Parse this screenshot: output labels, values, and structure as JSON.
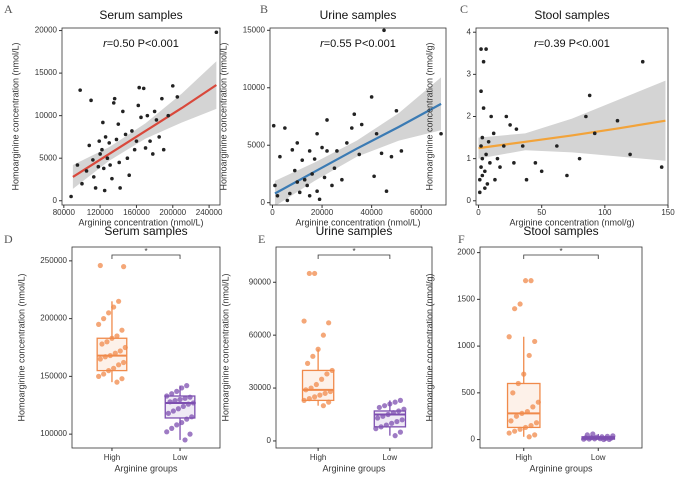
{
  "chart_data": [
    {
      "type": "scatter",
      "letter": "A",
      "title": "Serum samples",
      "x_label": "Arginine concentration (nmol/L)",
      "y_label": "Homoarginine concentration (nmol/L)",
      "annotation": {
        "r": "r",
        "text": "=0.50  P<0.001"
      },
      "xlim": [
        78000,
        252000
      ],
      "xticks": [
        80000,
        120000,
        160000,
        200000,
        240000
      ],
      "ylim": [
        -500,
        20300
      ],
      "yticks": [
        0,
        5000,
        10000,
        15000,
        20000
      ],
      "point_color": "#222222",
      "fit_color": "#d9483b",
      "band_color": "#d4d4d4",
      "x": [
        88000,
        95000,
        98000,
        100000,
        105000,
        108000,
        110000,
        112000,
        113000,
        115000,
        118000,
        119000,
        120000,
        122000,
        123000,
        124000,
        125000,
        126000,
        128000,
        130000,
        131000,
        133000,
        135000,
        136000,
        138000,
        140000,
        141000,
        142000,
        145000,
        148000,
        150000,
        152000,
        155000,
        158000,
        160000,
        162000,
        163000,
        165000,
        168000,
        170000,
        172000,
        175000,
        178000,
        180000,
        182000,
        185000,
        188000,
        190000,
        195000,
        200000,
        205000,
        248000
      ],
      "values": [
        500,
        4200,
        13000,
        2000,
        3500,
        6500,
        11800,
        4800,
        2800,
        1500,
        4000,
        7000,
        5500,
        6000,
        9200,
        3800,
        1200,
        7500,
        5000,
        6800,
        4200,
        2600,
        11500,
        12000,
        7200,
        9000,
        4500,
        1500,
        10500,
        7800,
        5000,
        3000,
        8200,
        6000,
        7000,
        11200,
        13300,
        9800,
        13200,
        6200,
        10000,
        7000,
        5500,
        10500,
        9500,
        7500,
        12000,
        6000,
        10000,
        13500,
        12200,
        19800
      ],
      "fit": {
        "x": [
          90000,
          130000,
          170000,
          210000,
          248000
        ],
        "y": [
          2800,
          5500,
          8200,
          10900,
          13600
        ],
        "lower": [
          1400,
          4700,
          7300,
          9200,
          10800
        ],
        "upper": [
          4200,
          6300,
          9100,
          12600,
          16400
        ]
      }
    },
    {
      "type": "scatter",
      "letter": "B",
      "title": "Urine samples",
      "x_label": "Arginine concentration (nmol/L)",
      "y_label": "Homoarginine concentration (nmol/L)",
      "annotation": {
        "r": "r",
        "text": "=0.55  P<0.001"
      },
      "xlim": [
        -1000,
        70000
      ],
      "xticks": [
        0,
        20000,
        40000,
        60000
      ],
      "ylim": [
        -200,
        15200
      ],
      "yticks": [
        0,
        5000,
        10000,
        15000
      ],
      "point_color": "#222222",
      "fit_color": "#3b7bb4",
      "band_color": "#d4d4d4",
      "x": [
        500,
        1000,
        2000,
        3000,
        5000,
        6000,
        7000,
        8000,
        9000,
        10000,
        10000,
        11000,
        12000,
        13000,
        14000,
        15000,
        15000,
        16000,
        17000,
        18000,
        18000,
        19000,
        20000,
        21000,
        22000,
        22000,
        24000,
        25000,
        26000,
        28000,
        30000,
        32000,
        33000,
        35000,
        36000,
        40000,
        41000,
        42000,
        44000,
        45000,
        46000,
        48000,
        50000,
        52000,
        68000
      ],
      "values": [
        6700,
        1500,
        600,
        4000,
        6500,
        200,
        800,
        4600,
        2800,
        1800,
        5200,
        900,
        3700,
        2000,
        1500,
        4500,
        600,
        2500,
        3800,
        6000,
        1000,
        300,
        4800,
        2200,
        4500,
        7200,
        1500,
        3000,
        4500,
        2000,
        5200,
        6500,
        7700,
        4200,
        6800,
        9200,
        2300,
        6000,
        4300,
        15000,
        1000,
        4000,
        8000,
        4500,
        6000
      ],
      "fit": {
        "x": [
          1000,
          17000,
          34000,
          51000,
          68000
        ],
        "y": [
          800,
          2700,
          4700,
          6600,
          8600
        ],
        "lower": [
          -300,
          1900,
          4000,
          5400,
          6300
        ],
        "upper": [
          1900,
          3500,
          5400,
          7800,
          10900
        ]
      }
    },
    {
      "type": "scatter",
      "letter": "C",
      "title": "Stool samples",
      "x_label": "Arginine concentration (nmol/g)",
      "y_label": "Homoarginine concentration (nmol/g)",
      "annotation": {
        "r": "r",
        "text": "=0.39  P<0.001"
      },
      "xlim": [
        -2,
        150
      ],
      "xticks": [
        0,
        50,
        100,
        150
      ],
      "ylim": [
        -0.1,
        4.1
      ],
      "yticks": [
        0,
        1,
        2,
        3,
        4
      ],
      "point_color": "#222222",
      "fit_color": "#f2a33a",
      "band_color": "#d4d4d4",
      "x": [
        1,
        1,
        2,
        2,
        2,
        2,
        3,
        3,
        3,
        4,
        4,
        5,
        5,
        6,
        6,
        7,
        8,
        9,
        10,
        12,
        13,
        15,
        17,
        20,
        22,
        25,
        28,
        30,
        35,
        38,
        45,
        50,
        62,
        70,
        80,
        85,
        88,
        92,
        120,
        130,
        145,
        110
      ],
      "values": [
        0.2,
        0.5,
        0.8,
        1.3,
        2.6,
        3.6,
        0.6,
        1.0,
        1.5,
        2.2,
        3.3,
        0.3,
        0.7,
        1.1,
        3.6,
        0.4,
        1.4,
        0.9,
        2.0,
        1.6,
        0.5,
        1.0,
        0.8,
        1.3,
        2.0,
        1.8,
        0.9,
        1.7,
        1.3,
        0.5,
        0.9,
        0.7,
        1.3,
        0.6,
        1.0,
        2.0,
        2.5,
        1.6,
        1.1,
        3.3,
        0.8,
        1.9
      ],
      "fit": {
        "x": [
          0,
          37,
          74,
          111,
          148
        ],
        "y": [
          1.25,
          1.4,
          1.55,
          1.72,
          1.9
        ],
        "lower": [
          1.0,
          1.2,
          1.15,
          1.05,
          0.95
        ],
        "upper": [
          1.5,
          1.6,
          1.95,
          2.4,
          2.85
        ]
      }
    },
    {
      "type": "box",
      "letter": "D",
      "title": "Serum samples",
      "x_label": "Arginine groups",
      "y_label": "Homoarginine concentration (nmol/L)",
      "significance": "*",
      "categories": [
        "High",
        "Low"
      ],
      "colors": [
        "#f08a4b",
        "#7d4fb0"
      ],
      "ylim": [
        88000,
        262000
      ],
      "yticks": [
        100000,
        150000,
        200000,
        250000
      ],
      "boxes": [
        {
          "min": 145000,
          "q1": 155000,
          "median": 168000,
          "q3": 183000,
          "max": 215000
        },
        {
          "min": 95000,
          "q1": 114000,
          "median": 127000,
          "q3": 133000,
          "max": 142000
        }
      ],
      "points": [
        [
          145000,
          148000,
          150000,
          152000,
          155000,
          157000,
          160000,
          162000,
          165000,
          167000,
          168000,
          170000,
          172000,
          175000,
          178000,
          180000,
          183000,
          185000,
          190000,
          195000,
          200000,
          205000,
          210000,
          215000,
          245000,
          246000
        ],
        [
          95000,
          100000,
          102000,
          105000,
          108000,
          110000,
          113000,
          115000,
          118000,
          120000,
          122000,
          124000,
          126000,
          127000,
          128000,
          129000,
          130000,
          131000,
          132000,
          133000,
          135000,
          137000,
          140000,
          142000
        ]
      ]
    },
    {
      "type": "box",
      "letter": "E",
      "title": "Urine samples",
      "x_label": "Arginine groups",
      "y_label": "Homoarginine concentration (nmol/L)",
      "significance": "*",
      "categories": [
        "High",
        "Low"
      ],
      "colors": [
        "#f08a4b",
        "#7d4fb0"
      ],
      "ylim": [
        -4000,
        110000
      ],
      "yticks": [
        0,
        30000,
        60000,
        90000
      ],
      "boxes": [
        {
          "min": 20000,
          "q1": 23000,
          "median": 29000,
          "q3": 40000,
          "max": 52000
        },
        {
          "min": 3000,
          "q1": 8000,
          "median": 15000,
          "q3": 17000,
          "max": 23000
        }
      ],
      "points": [
        [
          20000,
          22000,
          23000,
          24000,
          25000,
          26000,
          27000,
          28000,
          29000,
          30000,
          32000,
          35000,
          38000,
          40000,
          44000,
          48000,
          52000,
          60000,
          67000,
          68000,
          95000,
          95000
        ],
        [
          3000,
          5000,
          7000,
          8000,
          9000,
          10000,
          11000,
          12000,
          13000,
          14000,
          15000,
          16000,
          17000,
          18000,
          19000,
          20000,
          21000,
          22000,
          23000
        ]
      ]
    },
    {
      "type": "box",
      "letter": "F",
      "title": "Stool samples",
      "x_label": "Arginine groups",
      "y_label": "Homoarginine concentration (nmol/g)",
      "significance": "*",
      "categories": [
        "High",
        "Low"
      ],
      "colors": [
        "#f08a4b",
        "#7d4fb0"
      ],
      "ylim": [
        -90,
        2060
      ],
      "yticks": [
        0,
        500,
        1000,
        1500,
        2000
      ],
      "boxes": [
        {
          "min": 30,
          "q1": 130,
          "median": 280,
          "q3": 600,
          "max": 1100
        },
        {
          "min": 0,
          "q1": 5,
          "median": 15,
          "q3": 30,
          "max": 60
        }
      ],
      "points": [
        [
          30,
          50,
          70,
          90,
          110,
          130,
          150,
          180,
          200,
          250,
          280,
          300,
          350,
          400,
          500,
          600,
          700,
          900,
          1050,
          1100,
          1400,
          1450,
          1700,
          1700
        ],
        [
          0,
          2,
          4,
          6,
          8,
          10,
          12,
          15,
          18,
          20,
          25,
          30,
          35,
          40,
          50,
          60
        ]
      ]
    }
  ]
}
